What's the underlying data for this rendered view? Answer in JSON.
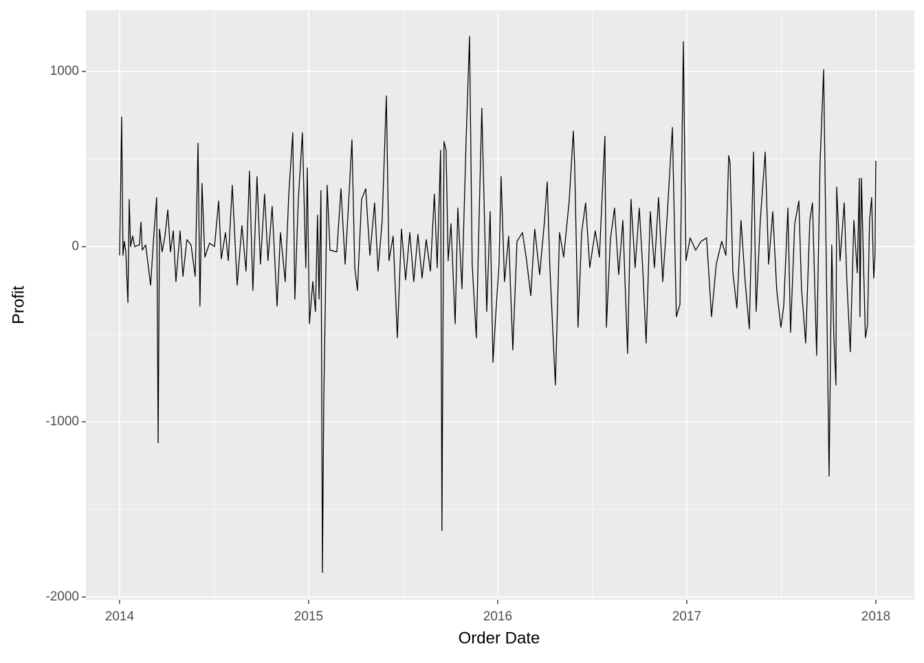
{
  "chart_data": {
    "type": "line",
    "x_label": "Order Date",
    "y_label": "Profit",
    "xlim": [
      2013.822,
      2018.204
    ],
    "xticks": [
      2014,
      2015,
      2016,
      2017,
      2018
    ],
    "xminor": [
      2014.5,
      2015.5,
      2016.5,
      2017.5
    ],
    "ylim": [
      -2016,
      1349
    ],
    "yticks": [
      -2000,
      -1000,
      0,
      1000
    ],
    "yminor": [
      -1500,
      -500,
      500
    ],
    "grid": true,
    "series": [
      {
        "color": "#000000",
        "x": [
          2014.0,
          2014.011,
          2014.018,
          2014.025,
          2014.033,
          2014.044,
          2014.051,
          2014.058,
          2014.069,
          2014.08,
          2014.105,
          2014.113,
          2014.12,
          2014.138,
          2014.164,
          2014.182,
          2014.196,
          2014.204,
          2014.211,
          2014.225,
          2014.24,
          2014.255,
          2014.269,
          2014.284,
          2014.298,
          2014.32,
          2014.335,
          2014.356,
          2014.378,
          2014.4,
          2014.415,
          2014.425,
          2014.436,
          2014.451,
          2014.476,
          2014.502,
          2014.524,
          2014.538,
          2014.56,
          2014.575,
          2014.596,
          2014.622,
          2014.647,
          2014.669,
          2014.687,
          2014.705,
          2014.727,
          2014.745,
          2014.767,
          2014.785,
          2014.807,
          2014.833,
          2014.851,
          2014.876,
          2014.895,
          2014.916,
          2014.927,
          2014.945,
          2014.967,
          2014.985,
          2014.993,
          2015.004,
          2015.022,
          2015.036,
          2015.047,
          2015.055,
          2015.065,
          2015.073,
          2015.08,
          2015.098,
          2015.113,
          2015.149,
          2015.171,
          2015.193,
          2015.211,
          2015.229,
          2015.244,
          2015.258,
          2015.28,
          2015.302,
          2015.324,
          2015.349,
          2015.367,
          2015.389,
          2015.411,
          2015.425,
          2015.447,
          2015.469,
          2015.491,
          2015.513,
          2015.535,
          2015.556,
          2015.578,
          2015.6,
          2015.622,
          2015.644,
          2015.665,
          2015.68,
          2015.698,
          2015.705,
          2015.716,
          2015.727,
          2015.738,
          2015.753,
          2015.775,
          2015.789,
          2015.811,
          2015.833,
          2015.851,
          2015.865,
          2015.887,
          2015.902,
          2015.916,
          2015.942,
          2015.96,
          2015.975,
          2015.989,
          2016.007,
          2016.018,
          2016.036,
          2016.058,
          2016.08,
          2016.102,
          2016.131,
          2016.153,
          2016.175,
          2016.196,
          2016.222,
          2016.247,
          2016.262,
          2016.276,
          2016.305,
          2016.327,
          2016.349,
          2016.378,
          2016.4,
          2016.407,
          2016.425,
          2016.444,
          2016.465,
          2016.487,
          2016.516,
          2016.538,
          2016.567,
          2016.575,
          2016.596,
          2016.618,
          2016.64,
          2016.662,
          2016.687,
          2016.705,
          2016.727,
          2016.749,
          2016.767,
          2016.785,
          2016.807,
          2016.829,
          2016.851,
          2016.873,
          2016.895,
          2016.924,
          2016.945,
          2016.964,
          2016.982,
          2016.996,
          2017.018,
          2017.047,
          2017.076,
          2017.105,
          2017.131,
          2017.156,
          2017.185,
          2017.207,
          2017.222,
          2017.229,
          2017.244,
          2017.265,
          2017.287,
          2017.309,
          2017.331,
          2017.353,
          2017.367,
          2017.389,
          2017.415,
          2017.433,
          2017.455,
          2017.476,
          2017.498,
          2017.513,
          2017.535,
          2017.549,
          2017.571,
          2017.593,
          2017.607,
          2017.629,
          2017.651,
          2017.665,
          2017.687,
          2017.705,
          2017.724,
          2017.738,
          2017.753,
          2017.767,
          2017.778,
          2017.789,
          2017.793,
          2017.811,
          2017.833,
          2017.847,
          2017.865,
          2017.884,
          2017.902,
          2017.913,
          2017.916,
          2017.924,
          2017.935,
          2017.945,
          2017.956,
          2017.967,
          2017.978,
          2017.989,
          2017.996,
          2018.0
        ],
        "values": [
          -50,
          740,
          -50,
          30,
          -30,
          -320,
          270,
          0,
          60,
          0,
          10,
          140,
          -20,
          10,
          -220,
          80,
          280,
          -1120,
          100,
          -30,
          60,
          210,
          -30,
          90,
          -200,
          90,
          -170,
          40,
          10,
          -170,
          590,
          -340,
          360,
          -60,
          20,
          0,
          260,
          -70,
          80,
          -80,
          350,
          -220,
          120,
          -140,
          430,
          -250,
          400,
          -100,
          300,
          -80,
          230,
          -340,
          80,
          -200,
          300,
          650,
          -300,
          260,
          650,
          -120,
          450,
          -440,
          -200,
          -370,
          180,
          -300,
          320,
          -1860,
          -880,
          350,
          -20,
          -30,
          330,
          -100,
          240,
          610,
          -120,
          -250,
          270,
          330,
          -50,
          250,
          -140,
          150,
          860,
          -80,
          60,
          -520,
          100,
          -190,
          80,
          -200,
          70,
          -180,
          40,
          -140,
          300,
          -120,
          550,
          -1620,
          600,
          550,
          -80,
          130,
          -440,
          220,
          -240,
          610,
          1200,
          -100,
          -520,
          180,
          790,
          -370,
          200,
          -660,
          -400,
          -100,
          400,
          -200,
          60,
          -590,
          30,
          80,
          -80,
          -280,
          100,
          -160,
          140,
          370,
          -120,
          -790,
          80,
          -60,
          260,
          660,
          470,
          -460,
          80,
          250,
          -120,
          90,
          -60,
          630,
          -460,
          40,
          220,
          -160,
          150,
          -610,
          270,
          -120,
          220,
          -120,
          -550,
          200,
          -120,
          280,
          -200,
          150,
          680,
          -400,
          -330,
          1170,
          -80,
          50,
          -20,
          30,
          50,
          -400,
          -100,
          30,
          -50,
          520,
          480,
          -150,
          -350,
          150,
          -200,
          -470,
          540,
          -370,
          150,
          540,
          -100,
          200,
          -250,
          -460,
          -340,
          220,
          -490,
          130,
          260,
          -240,
          -550,
          150,
          250,
          -620,
          470,
          1010,
          -100,
          -1310,
          10,
          -510,
          -790,
          340,
          -80,
          250,
          -200,
          -600,
          150,
          -150,
          390,
          -400,
          390,
          -100,
          -520,
          -450,
          150,
          280,
          -180,
          -50,
          490
        ]
      }
    ]
  }
}
